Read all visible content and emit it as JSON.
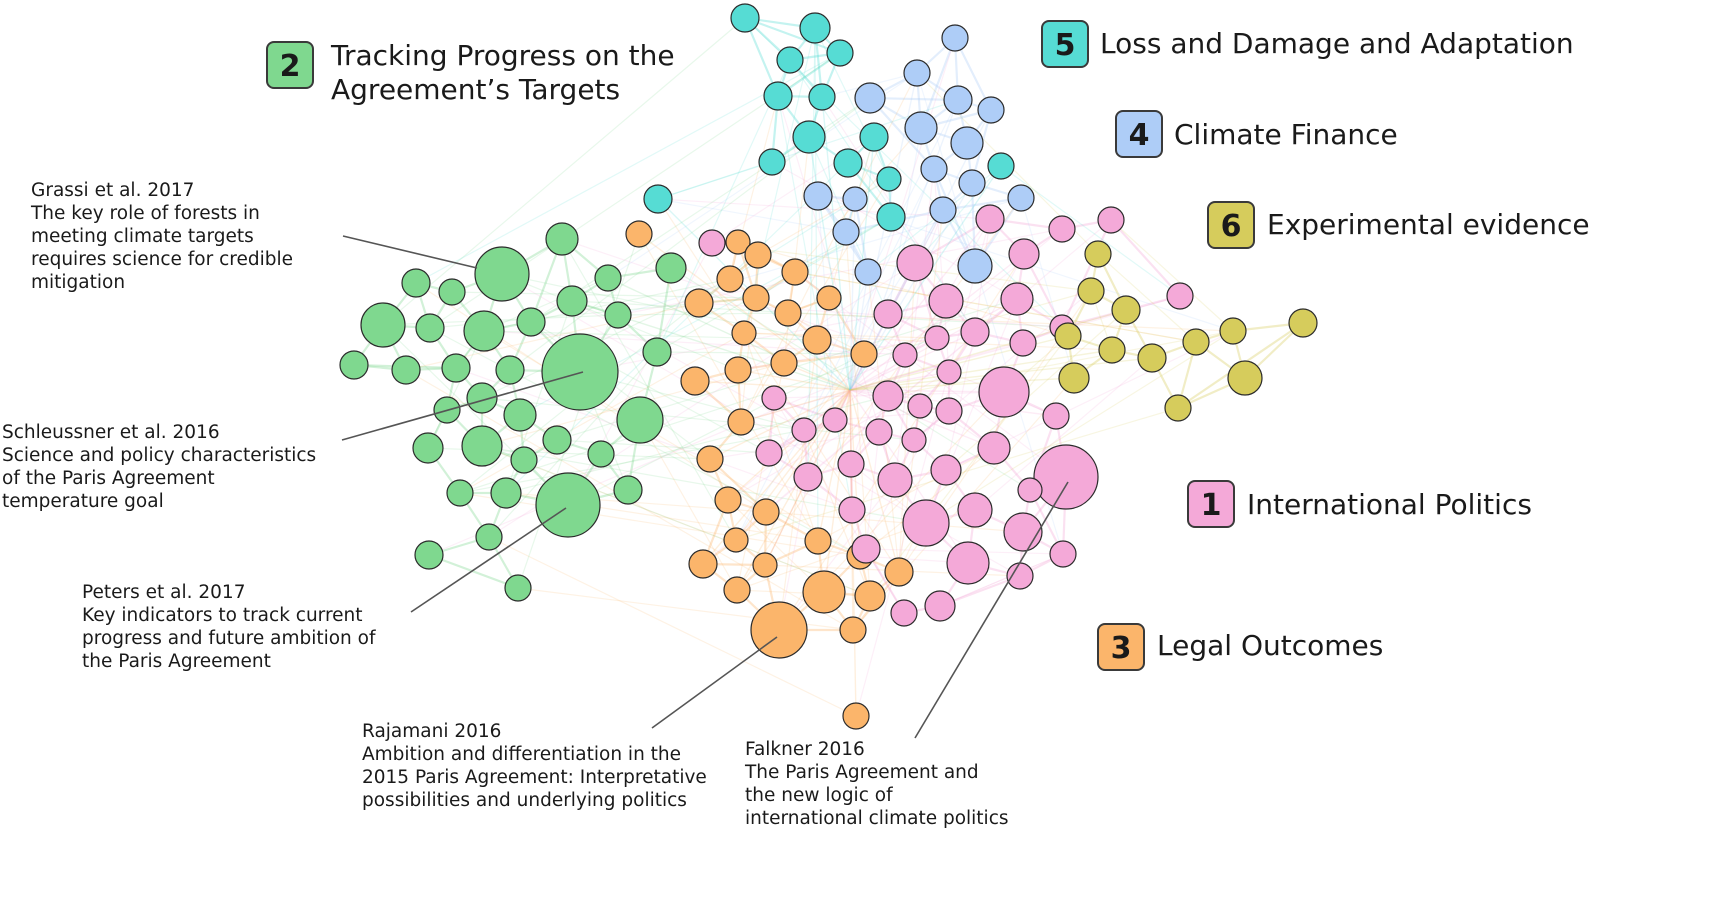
{
  "clusters": [
    {
      "id": 1,
      "number": "1",
      "label": "International Politics",
      "color": "#f4a9d8"
    },
    {
      "id": 2,
      "number": "2",
      "label": [
        "Tracking Progress on the",
        "Agreement’s Targets"
      ],
      "color": "#7fd88f"
    },
    {
      "id": 3,
      "number": "3",
      "label": "Legal Outcomes",
      "color": "#fbb56b"
    },
    {
      "id": 4,
      "number": "4",
      "label": "Climate Finance",
      "color": "#aecdf7"
    },
    {
      "id": 5,
      "number": "5",
      "label": "Loss and Damage and Adaptation",
      "color": "#56dcd4"
    },
    {
      "id": 6,
      "number": "6",
      "label": "Experimental evidence",
      "color": "#d6cc5c"
    }
  ],
  "annotations": [
    {
      "name": "grassi",
      "lines": [
        "Grassi et al. 2017",
        "The key role of forests in",
        "meeting climate targets",
        "requires science for credible",
        "mitigation"
      ]
    },
    {
      "name": "schleussner",
      "lines": [
        "Schleussner et al. 2016",
        "Science and policy characteristics",
        "of the Paris Agreement",
        "temperature goal"
      ]
    },
    {
      "name": "peters",
      "lines": [
        "Peters et al. 2017",
        "Key indicators to track current",
        "progress and future ambition of",
        "the Paris Agreement"
      ]
    },
    {
      "name": "rajamani",
      "lines": [
        "Rajamani 2016",
        "Ambition and differentiation in the",
        "2015 Paris Agreement: Interpretative",
        "possibilities and underlying politics"
      ]
    },
    {
      "name": "falkner",
      "lines": [
        "Falkner 2016",
        "The Paris Agreement and",
        "the new logic of",
        "international climate politics"
      ]
    }
  ]
}
